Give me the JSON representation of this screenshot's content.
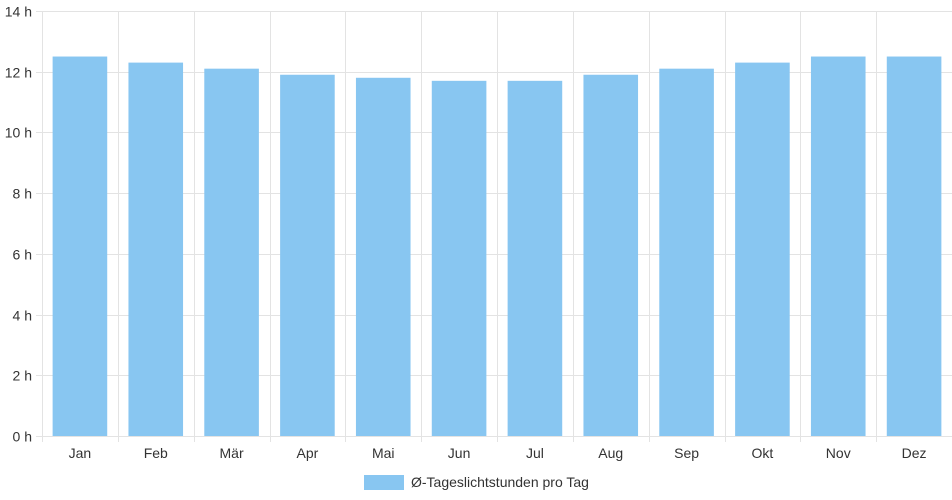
{
  "chart_data": {
    "type": "bar",
    "categories": [
      "Jan",
      "Feb",
      "Mär",
      "Apr",
      "Mai",
      "Jun",
      "Jul",
      "Aug",
      "Sep",
      "Okt",
      "Nov",
      "Dez"
    ],
    "series": [
      {
        "name": "Ø-Tageslichtstunden pro Tag",
        "values": [
          12.5,
          12.3,
          12.1,
          11.9,
          11.8,
          11.7,
          11.7,
          11.9,
          12.1,
          12.3,
          12.5,
          12.5
        ],
        "color": "#88c6f1"
      }
    ],
    "ylim": [
      0,
      14
    ],
    "y_ticks": [
      "0 h",
      "2 h",
      "4 h",
      "6 h",
      "8 h",
      "10 h",
      "12 h",
      "14 h"
    ],
    "grid": true,
    "legend_position": "bottom"
  }
}
